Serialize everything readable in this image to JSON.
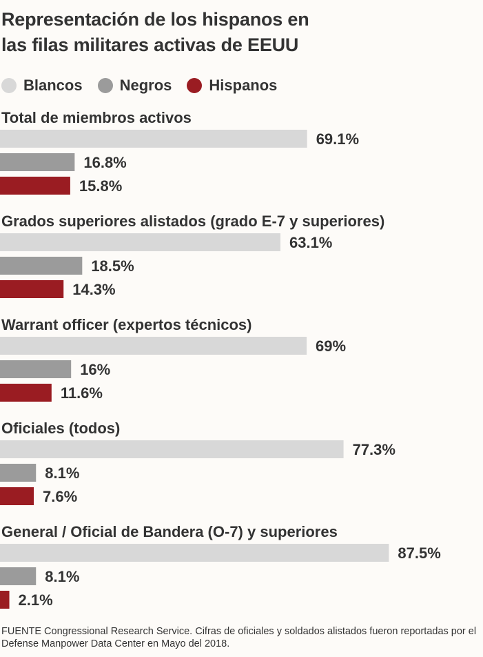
{
  "title_line1": "Representación de los hispanos en",
  "title_line2": "las filas militares activas de EEUU",
  "legend": [
    {
      "label": "Blancos",
      "color": "#d8d8d8"
    },
    {
      "label": "Negros",
      "color": "#9b9b9b"
    },
    {
      "label": "Hispanos",
      "color": "#9a1c22"
    }
  ],
  "source": "FUENTE Congressional Research Service. Cifras de oficiales y soldados alistados fueron reportadas por el Defense Manpower Data Center en Mayo del 2018.",
  "chart_data": {
    "type": "bar",
    "orientation": "horizontal",
    "grid": false,
    "legend_position": "top",
    "series": [
      {
        "name": "Blancos",
        "color": "#d8d8d8"
      },
      {
        "name": "Negros",
        "color": "#9b9b9b"
      },
      {
        "name": "Hispanos",
        "color": "#9a1c22"
      }
    ],
    "groups": [
      {
        "title": "Total de miembros activos",
        "values": [
          69.1,
          16.8,
          15.8
        ],
        "labels": [
          "69.1%",
          "16.8%",
          "15.8%"
        ]
      },
      {
        "title": "Grados superiores alistados (grado E-7 y superiores)",
        "values": [
          63.1,
          18.5,
          14.3
        ],
        "labels": [
          "63.1%",
          "18.5%",
          "14.3%"
        ]
      },
      {
        "title": "Warrant officer (expertos técnicos)",
        "values": [
          69,
          16,
          11.6
        ],
        "labels": [
          "69%",
          "16%",
          "11.6%"
        ]
      },
      {
        "title": "Oficiales (todos)",
        "values": [
          77.3,
          8.1,
          7.6
        ],
        "labels": [
          "77.3%",
          "8.1%",
          "7.6%"
        ]
      },
      {
        "title": "General / Oficial de Bandera (O-7) y superiores",
        "values": [
          87.5,
          8.1,
          2.1
        ],
        "labels": [
          "87.5%",
          "8.1%",
          "2.1%"
        ]
      }
    ]
  }
}
